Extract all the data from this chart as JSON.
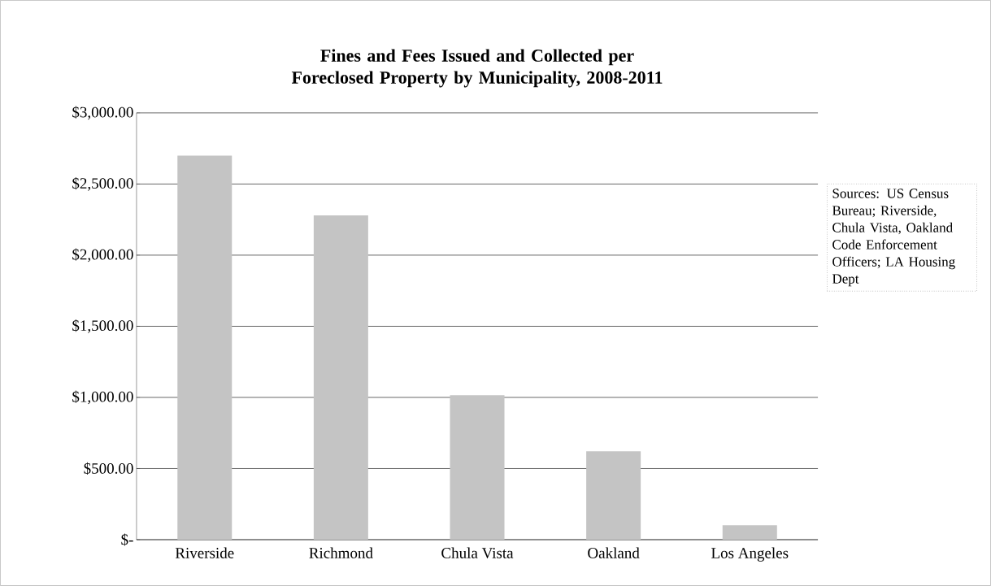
{
  "chart_data": {
    "type": "bar",
    "title": "Fines and Fees Issued and Collected per Foreclosed Property by Municipality, 2008-2011",
    "categories": [
      "Riverside",
      "Richmond",
      "Chula Vista",
      "Oakland",
      "Los Angeles"
    ],
    "values": [
      2700,
      2280,
      1015,
      622,
      102
    ],
    "color": "#c4c4c4",
    "ylim": [
      0,
      3000
    ],
    "yticks": [
      {
        "value": 0,
        "label": "$-"
      },
      {
        "value": 500,
        "label": "$500.00"
      },
      {
        "value": 1000,
        "label": "$1,000.00"
      },
      {
        "value": 1500,
        "label": "$1,500.00"
      },
      {
        "value": 2000,
        "label": "$2,000.00"
      },
      {
        "value": 2500,
        "label": "$2,500.00"
      },
      {
        "value": 3000,
        "label": "$3,000.00"
      }
    ],
    "grid": "y",
    "annotations": [
      "Sources: US Census Bureau; Riverside, Chula Vista, Oakland Code Enforcement Officers; LA Housing Dept"
    ]
  }
}
